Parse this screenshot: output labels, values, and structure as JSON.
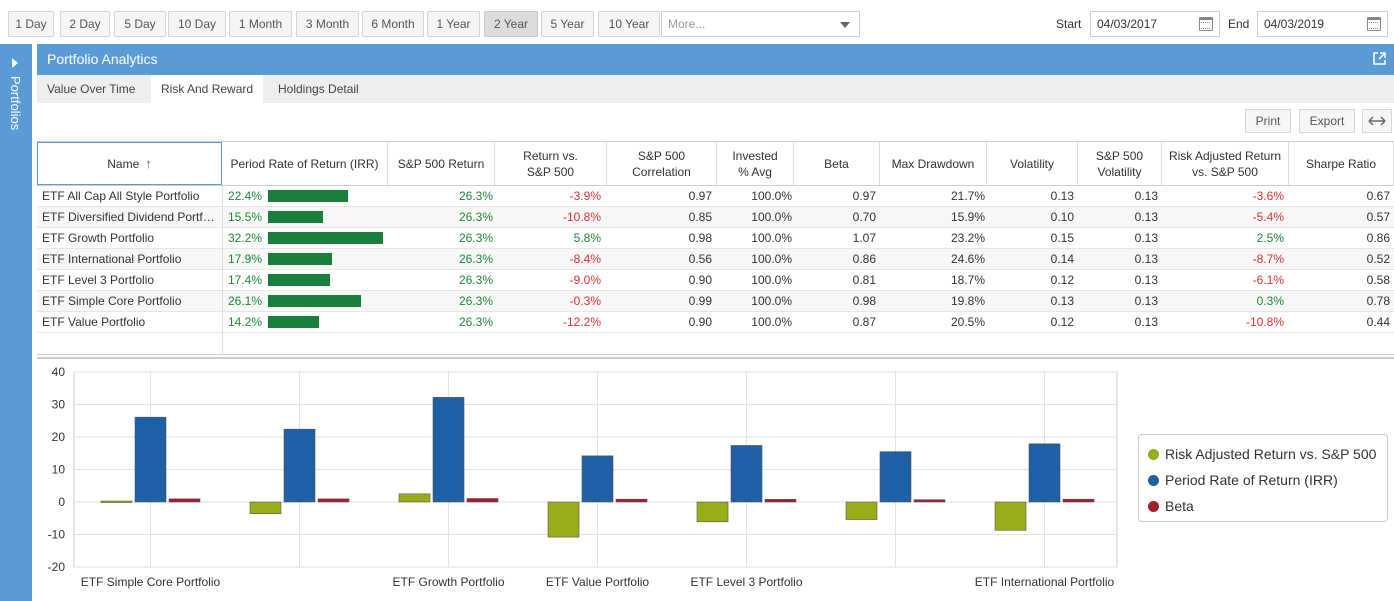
{
  "toolbar": {
    "ranges": [
      {
        "label": "1 Day"
      },
      {
        "label": "2 Day"
      },
      {
        "label": "5 Day"
      },
      {
        "label": "10 Day"
      },
      {
        "label": "1 Month"
      },
      {
        "label": "3 Month"
      },
      {
        "label": "6 Month"
      },
      {
        "label": "1 Year"
      },
      {
        "label": "2 Year",
        "active": true
      },
      {
        "label": "5 Year"
      },
      {
        "label": "10 Year"
      }
    ],
    "more_placeholder": "More...",
    "start_label": "Start",
    "start_value": "04/03/2017",
    "end_label": "End",
    "end_value": "04/03/2019"
  },
  "rail": {
    "label": "Portfolios"
  },
  "panel": {
    "title": "Portfolio Analytics",
    "tabs": [
      {
        "label": "Value Over Time"
      },
      {
        "label": "Risk And Reward",
        "active": true
      },
      {
        "label": "Holdings Detail"
      }
    ],
    "print_label": "Print",
    "export_label": "Export"
  },
  "grid": {
    "columns": [
      "Name",
      "Period Rate of Return (IRR)",
      "S&P 500 Return",
      "Return vs. S&P 500",
      "S&P 500 Correlation",
      "Invested % Avg",
      "Beta",
      "Max Drawdown",
      "Volatility",
      "S&P 500 Volatility",
      "Risk Adjusted Return vs. S&P 500",
      "Sharpe Ratio"
    ],
    "sort_icon": "arrow-up-icon",
    "rows": [
      {
        "name": "ETF All Cap All Style Portfolio",
        "irr": "22.4%",
        "irr_value": 22.4,
        "sp": "26.3%",
        "vs": "-3.9%",
        "corr": "0.97",
        "inv": "100.0%",
        "beta": "0.97",
        "mdd": "21.7%",
        "vol": "0.13",
        "spvol": "0.13",
        "rar": "-3.6%",
        "sharpe": "0.67"
      },
      {
        "name": "ETF Diversified Dividend Portfolio",
        "irr": "15.5%",
        "irr_value": 15.5,
        "sp": "26.3%",
        "vs": "-10.8%",
        "corr": "0.85",
        "inv": "100.0%",
        "beta": "0.70",
        "mdd": "15.9%",
        "vol": "0.10",
        "spvol": "0.13",
        "rar": "-5.4%",
        "sharpe": "0.57"
      },
      {
        "name": "ETF Growth Portfolio",
        "irr": "32.2%",
        "irr_value": 32.2,
        "sp": "26.3%",
        "vs": "5.8%",
        "corr": "0.98",
        "inv": "100.0%",
        "beta": "1.07",
        "mdd": "23.2%",
        "vol": "0.15",
        "spvol": "0.13",
        "rar": "2.5%",
        "sharpe": "0.86"
      },
      {
        "name": "ETF International Portfolio",
        "irr": "17.9%",
        "irr_value": 17.9,
        "sp": "26.3%",
        "vs": "-8.4%",
        "corr": "0.56",
        "inv": "100.0%",
        "beta": "0.86",
        "mdd": "24.6%",
        "vol": "0.14",
        "spvol": "0.13",
        "rar": "-8.7%",
        "sharpe": "0.52"
      },
      {
        "name": "ETF Level 3 Portfolio",
        "irr": "17.4%",
        "irr_value": 17.4,
        "sp": "26.3%",
        "vs": "-9.0%",
        "corr": "0.90",
        "inv": "100.0%",
        "beta": "0.81",
        "mdd": "18.7%",
        "vol": "0.12",
        "spvol": "0.13",
        "rar": "-6.1%",
        "sharpe": "0.58"
      },
      {
        "name": "ETF Simple Core Portfolio",
        "irr": "26.1%",
        "irr_value": 26.1,
        "sp": "26.3%",
        "vs": "-0.3%",
        "corr": "0.99",
        "inv": "100.0%",
        "beta": "0.98",
        "mdd": "19.8%",
        "vol": "0.13",
        "spvol": "0.13",
        "rar": "0.3%",
        "sharpe": "0.78"
      },
      {
        "name": "ETF Value Portfolio",
        "irr": "14.2%",
        "irr_value": 14.2,
        "sp": "26.3%",
        "vs": "-12.2%",
        "corr": "0.90",
        "inv": "100.0%",
        "beta": "0.87",
        "mdd": "20.5%",
        "vol": "0.12",
        "spvol": "0.13",
        "rar": "-10.8%",
        "sharpe": "0.44"
      }
    ]
  },
  "chart_data": {
    "type": "bar",
    "categories": [
      "ETF Simple Core Portfolio",
      "ETF All Cap All Style Portfolio",
      "ETF Growth Portfolio",
      "ETF Value Portfolio",
      "ETF Level 3 Portfolio",
      "ETF Diversified Dividend Portfolio",
      "ETF International Portfolio"
    ],
    "category_labels": [
      "ETF Simple Core Portfolio",
      "",
      "ETF Growth Portfolio",
      "ETF Value Portfolio",
      "ETF Level 3 Portfolio",
      "",
      "ETF International Portfolio"
    ],
    "series": [
      {
        "name": "Risk Adjusted Return vs. S&P 500",
        "color": "#9aac1a",
        "values": [
          0.3,
          -3.6,
          2.5,
          -10.8,
          -6.1,
          -5.4,
          -8.7
        ]
      },
      {
        "name": "Period Rate of Return (IRR)",
        "color": "#1f5fa5",
        "values": [
          26.1,
          22.4,
          32.2,
          14.2,
          17.4,
          15.5,
          17.9
        ]
      },
      {
        "name": "Beta",
        "color": "#a11d30",
        "values": [
          0.98,
          0.97,
          1.07,
          0.87,
          0.81,
          0.7,
          0.86
        ]
      }
    ],
    "yticks": [
      40,
      30,
      20,
      10,
      0,
      -10,
      -20
    ],
    "ylim": [
      -20,
      40
    ],
    "grid": true,
    "legend": "right"
  }
}
